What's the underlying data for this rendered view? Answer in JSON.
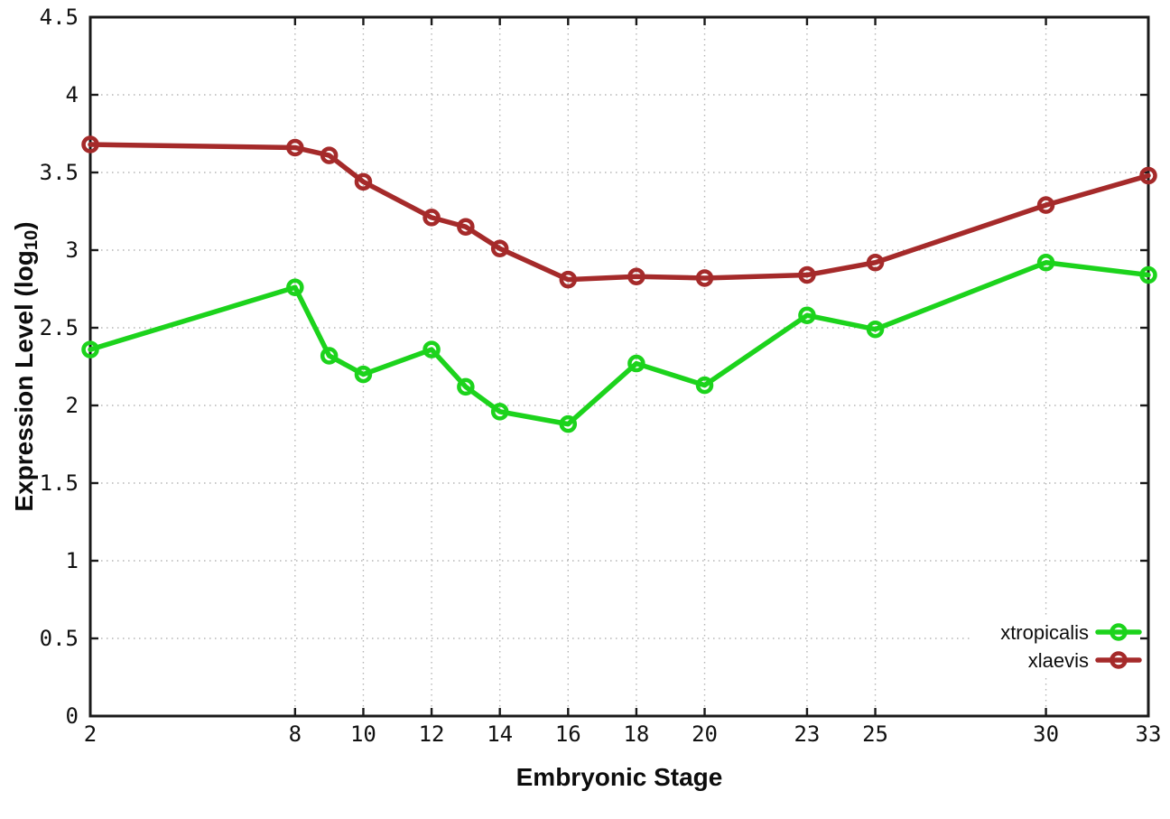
{
  "chart_data": {
    "type": "line",
    "title": "",
    "xlabel": "Embryonic Stage",
    "ylabel": "Expression Level (log10)",
    "ylabel_parts": {
      "text": "Expression Level (log",
      "sub": "10",
      "suffix": ")"
    },
    "x": [
      2,
      8,
      9,
      10,
      12,
      13,
      14,
      16,
      18,
      20,
      23,
      25,
      30,
      33
    ],
    "series": [
      {
        "name": "xtropicalis",
        "color": "#1cd31c",
        "values": [
          2.36,
          2.76,
          2.32,
          2.2,
          2.36,
          2.12,
          1.96,
          1.88,
          2.27,
          2.13,
          2.58,
          2.49,
          2.92,
          2.84
        ]
      },
      {
        "name": "xlaevis",
        "color": "#a52a2a",
        "values": [
          3.68,
          3.66,
          3.61,
          3.44,
          3.21,
          3.15,
          3.01,
          2.81,
          2.83,
          2.82,
          2.84,
          2.92,
          3.29,
          3.48
        ]
      }
    ],
    "xticks": [
      2,
      8,
      10,
      12,
      14,
      16,
      18,
      20,
      23,
      25,
      30,
      33
    ],
    "yticks": [
      0,
      0.5,
      1,
      1.5,
      2,
      2.5,
      3,
      3.5,
      4,
      4.5
    ],
    "xlim": [
      2,
      33
    ],
    "ylim": [
      0,
      4.5
    ],
    "grid": true,
    "legend_position": "inside-bottom-right",
    "marker": "open-circle",
    "axis_color": "#1a1a1a",
    "grid_color": "#b5b5b5",
    "tick_label_color": "#111111",
    "background": "#ffffff"
  }
}
